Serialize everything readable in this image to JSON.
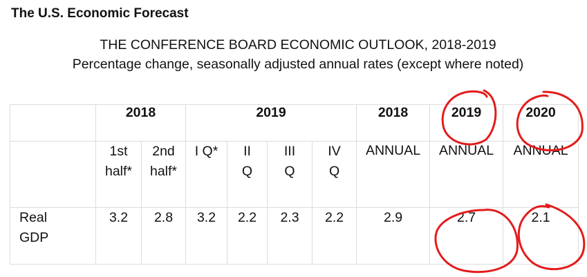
{
  "page": {
    "heading": "The U.S. Economic Forecast",
    "subtitle": "THE CONFERENCE BOARD ECONOMIC OUTLOOK, 2018-2019",
    "subtitle2": "Percentage change, seasonally adjusted annual rates (except where noted)"
  },
  "table": {
    "header": {
      "year_2018_half": "2018",
      "year_2019_quarters": "2019",
      "year_2018_annual": "2018",
      "year_2019_annual": "2019",
      "year_2020_annual": "2020"
    },
    "subheader": {
      "h1_line1": "1st",
      "h1_line2": "half*",
      "h2_line1": "2nd",
      "h2_line2": "half*",
      "q1": "I Q*",
      "q2_line1": "II",
      "q2_line2": "Q",
      "q3_line1": "III",
      "q3_line2": "Q",
      "q4_line1": "IV",
      "q4_line2": "Q",
      "annual_2018": "ANNUAL",
      "annual_2019": "ANNUAL",
      "annual_2020": "ANNUAL"
    },
    "rows": [
      {
        "label_line1": "Real",
        "label_line2": "GDP",
        "values": [
          "3.2",
          "2.8",
          "3.2",
          "2.2",
          "2.3",
          "2.2",
          "2.9",
          "2.7",
          "2.1"
        ]
      }
    ]
  },
  "annotations": {
    "ink_color": "#e41b1b",
    "marked_cells": [
      "2019",
      "2020",
      "2.7",
      "2.1"
    ]
  }
}
